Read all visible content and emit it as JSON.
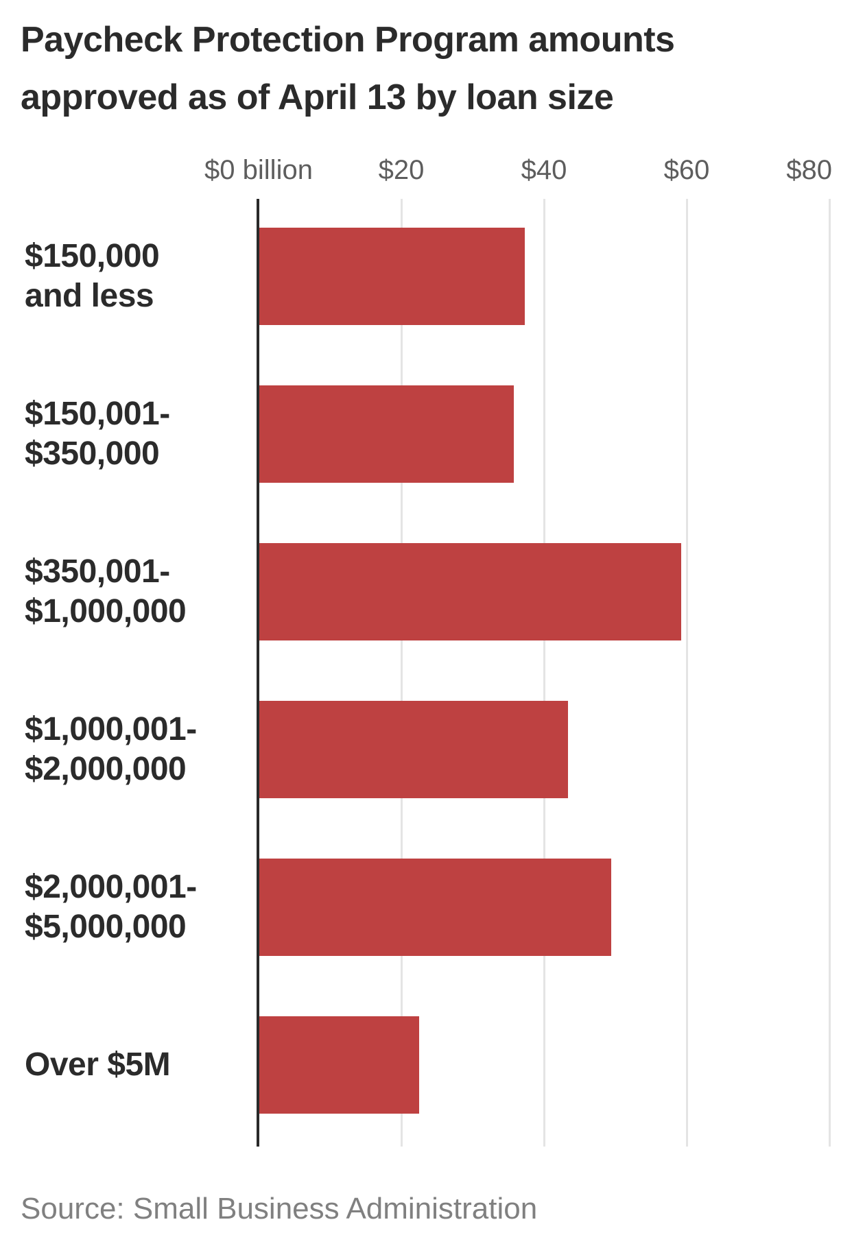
{
  "title_lines": [
    "Paycheck Protection Program amounts",
    "approved as of April 13 by loan size"
  ],
  "source": "Source: Small Business Administration",
  "chart_data": {
    "type": "bar",
    "orientation": "horizontal",
    "title": "Paycheck Protection Program amounts approved as of April 13 by loan size",
    "categories": [
      "$150,000 and less",
      "$150,001-$350,000",
      "$350,001-$1,000,000",
      "$1,000,001-$2,000,000",
      "$2,000,001-$5,000,000",
      "Over $5M"
    ],
    "category_lines": [
      [
        "$150,000",
        "and less"
      ],
      [
        "$150,001-",
        "$350,000"
      ],
      [
        "$350,001-",
        "$1,000,000"
      ],
      [
        "$1,000,001-",
        "$2,000,000"
      ],
      [
        "$2,000,001-",
        "$5,000,000"
      ],
      [
        "Over $5M"
      ]
    ],
    "values": [
      37.2,
      35.7,
      59.1,
      43.3,
      49.3,
      22.4
    ],
    "unit": "billion USD",
    "xlabel": "",
    "ylabel": "",
    "xlim": [
      0,
      83
    ],
    "x_axis": {
      "tick_values": [
        0,
        20,
        40,
        60,
        80
      ],
      "tick_labels": [
        "$0 billion",
        "$20",
        "$40",
        "$60",
        "$80"
      ]
    },
    "grid": true,
    "legend": false,
    "colors": {
      "bar": "#be4141",
      "axis": "#2a2a2a",
      "gridline": "#e4e4e4",
      "title_text": "#2b2b2b",
      "category_text": "#2b2b2b",
      "tick_text": "#5d5d5d",
      "source_text": "#808080"
    }
  }
}
